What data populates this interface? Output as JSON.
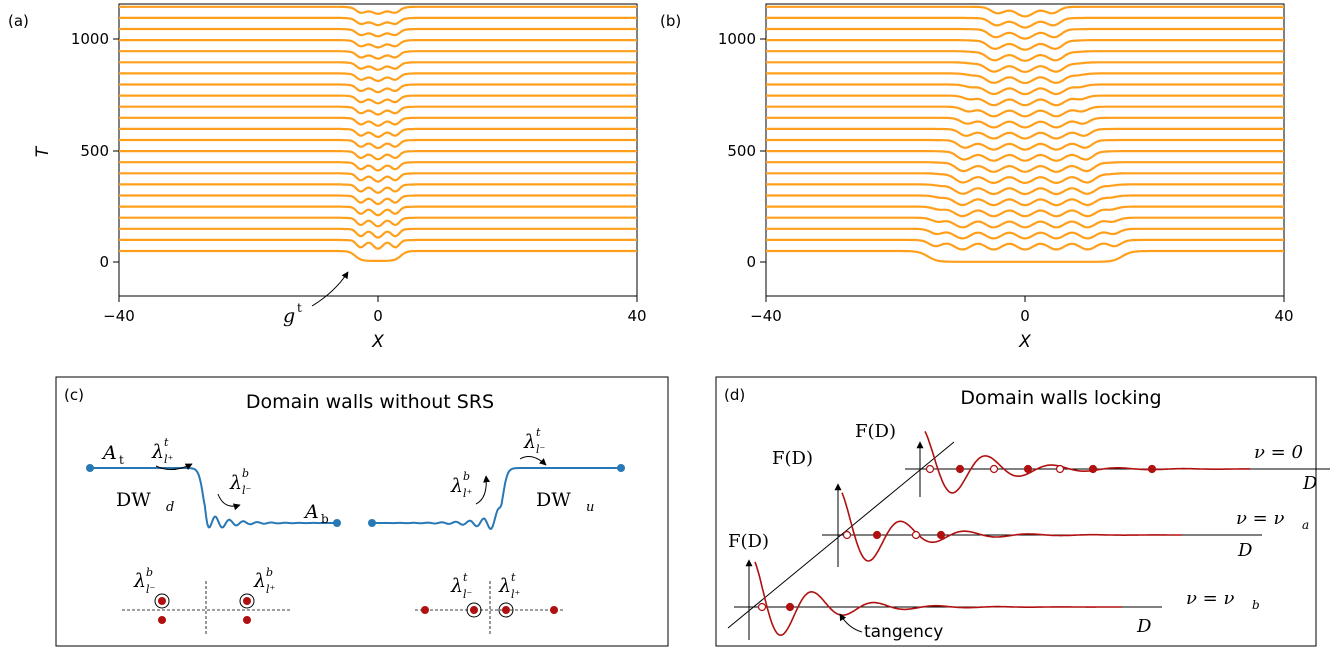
{
  "panel_a": {
    "label": "(a)",
    "y_axis_label": "T",
    "x_axis_label": "X",
    "y_ticks": [
      "1000",
      "500",
      "0"
    ],
    "x_ticks": [
      "−40",
      "0",
      "40"
    ],
    "annotation": "g",
    "annotation_sup": "t"
  },
  "panel_b": {
    "label": "(b)",
    "x_axis_label": "X",
    "y_ticks": [
      "1000",
      "500",
      "0"
    ],
    "x_ticks": [
      "−40",
      "0",
      "40"
    ]
  },
  "panel_c": {
    "label": "(c)",
    "title": "Domain walls without SRS",
    "A_t": "A",
    "A_t_sub": "t",
    "A_b": "A",
    "A_b_sub": "b",
    "dw_d": "DW",
    "dw_d_sub": "d",
    "dw_u": "DW",
    "dw_u_sub": "u",
    "lambda": "λ"
  },
  "panel_d": {
    "label": "(d)",
    "title": "Domain walls locking",
    "f_label": "F(D)",
    "d_label": "D",
    "nu_0": "ν = 0",
    "nu_a": "ν = ν",
    "nu_a_sub": "a",
    "nu_b": "ν = ν",
    "nu_b_sub": "b",
    "tangency": "tangency"
  },
  "chart_data": [
    {
      "type": "line",
      "panel": "(a)",
      "xlabel": "X",
      "ylabel": "T",
      "xlim": [
        -40,
        40
      ],
      "ylim": [
        -100,
        1100
      ],
      "x_ticks": [
        -40,
        0,
        40
      ],
      "y_ticks": [
        0,
        500,
        1000
      ],
      "series_count": 23,
      "time_step": 50,
      "initial_domain_halfwidth": 3.5
    },
    {
      "type": "line",
      "panel": "(b)",
      "xlabel": "X",
      "xlim": [
        -40,
        40
      ],
      "ylim": [
        -100,
        1100
      ],
      "x_ticks": [
        -40,
        0,
        40
      ],
      "y_ticks": [
        0,
        500,
        1000
      ],
      "series_count": 23,
      "time_step": 50,
      "initial_domain_halfwidth": 15
    }
  ],
  "colors": {
    "traces": "#ff9f1c",
    "field": "#2878b5",
    "F_curve": "#b01010"
  }
}
